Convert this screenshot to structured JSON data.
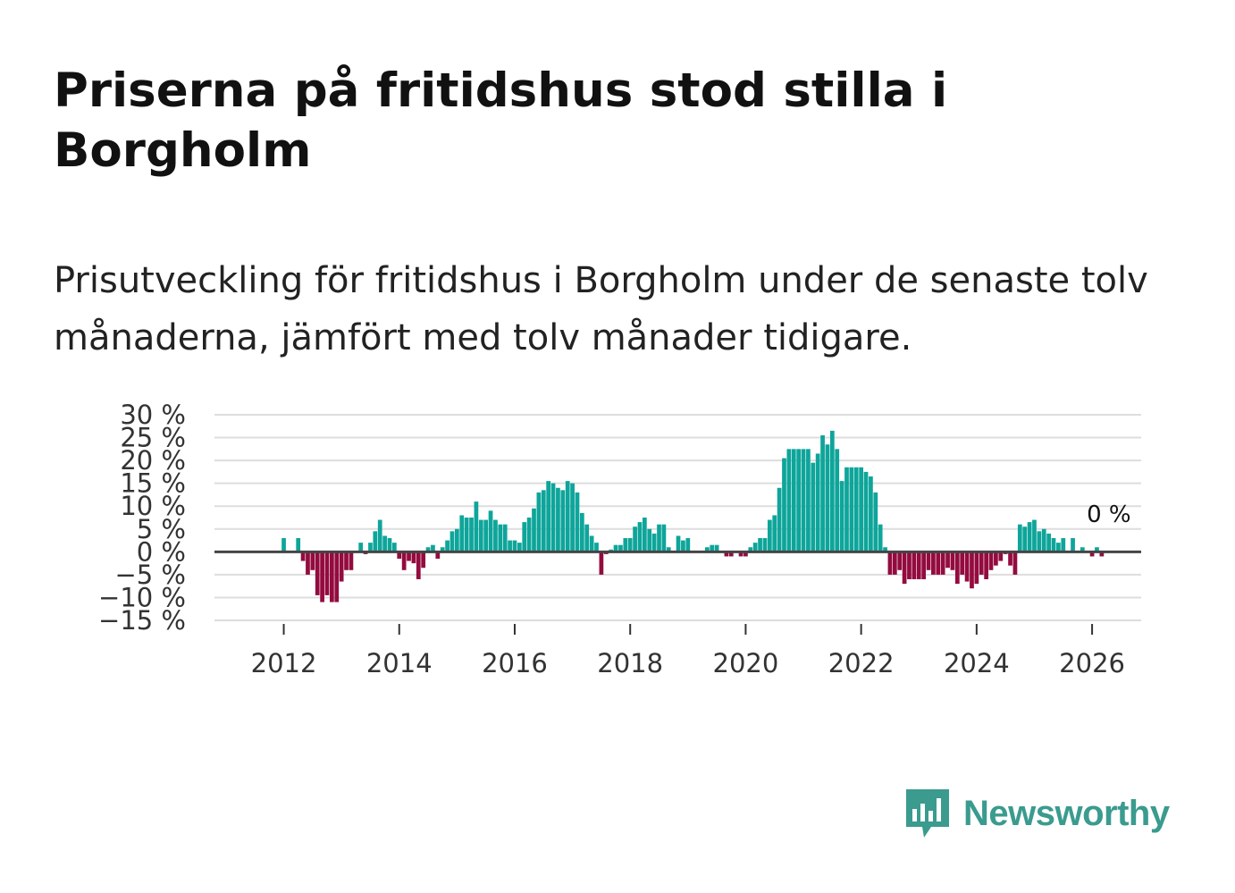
{
  "header": {
    "title": "Priserna på fritidshus stod stilla i Borgholm",
    "subtitle": "Prisutveckling för fritidshus i Borgholm under de senaste tolv månaderna, jämfört med tolv månader tidigare."
  },
  "brand": {
    "name": "Newsworthy",
    "icon": "newsworthy-logo-icon",
    "color": "#3a9b8e"
  },
  "colors": {
    "positive": "#0ea59a",
    "negative": "#930b3f",
    "zero_line": "#444444",
    "grid": "#dddddd"
  },
  "chart_data": {
    "type": "bar",
    "title": "Priserna på fritidshus stod stilla i Borgholm",
    "subtitle": "Prisutveckling för fritidshus i Borgholm under de senaste tolv månaderna, jämfört med tolv månader tidigare.",
    "xlabel": "",
    "ylabel": "",
    "unit": "%",
    "ylim": [
      -15,
      30
    ],
    "xlim": [
      2010.8,
      2026.85
    ],
    "grid": true,
    "y_ticks": [
      30,
      25,
      20,
      15,
      10,
      5,
      0,
      -5,
      -10,
      -15
    ],
    "y_tick_labels": [
      "30 %",
      "25 %",
      "20 %",
      "15 %",
      "10 %",
      "5 %",
      "0 %",
      "−5 %",
      "−10 %",
      "−15 %"
    ],
    "x_ticks": [
      2012,
      2014,
      2016,
      2018,
      2020,
      2022,
      2024,
      2026
    ],
    "x_tick_labels": [
      "2012",
      "2014",
      "2016",
      "2018",
      "2020",
      "2022",
      "2024",
      "2026"
    ],
    "start": "2011-10",
    "frequency": "monthly",
    "values": [
      0,
      0,
      0,
      3,
      0,
      0,
      3,
      -2,
      -5,
      -4,
      -9.5,
      -11,
      -9.5,
      -11,
      -11,
      -6.5,
      -4,
      -4,
      0,
      2,
      -0.5,
      2,
      4.5,
      7,
      3.5,
      3,
      2,
      -1.5,
      -4,
      -2,
      -2.5,
      -6,
      -3.5,
      1,
      1.5,
      -1.5,
      1,
      2.5,
      4.5,
      5,
      8,
      7.5,
      7.5,
      11,
      7,
      7,
      9,
      7,
      6,
      6,
      2.5,
      2.5,
      2,
      6.5,
      7.5,
      9.5,
      13,
      13.5,
      15.5,
      15,
      14,
      13.5,
      15.5,
      15,
      13,
      8.5,
      6,
      3.5,
      2,
      -5,
      -0.5,
      0.5,
      1.5,
      1.5,
      3,
      3,
      5.5,
      6.5,
      7.5,
      5,
      4,
      6,
      6,
      1,
      0,
      3.5,
      2.5,
      3,
      0,
      0,
      0,
      1,
      1.5,
      1.5,
      0,
      -1,
      -1,
      0,
      -1,
      -1,
      1,
      2,
      3,
      3,
      7,
      8,
      14,
      20.5,
      22.5,
      22.5,
      22.5,
      22.5,
      22.5,
      19.5,
      21.5,
      25.5,
      23.5,
      26.5,
      22.5,
      15.5,
      18.5,
      18.5,
      18.5,
      18.5,
      17.5,
      16.5,
      13,
      6,
      1,
      -5,
      -5,
      -4,
      -7,
      -6,
      -6,
      -6,
      -6,
      -4,
      -5,
      -5,
      -5,
      -3.5,
      -4,
      -7,
      -5,
      -6.5,
      -8,
      -7,
      -5,
      -6,
      -4,
      -3,
      -2,
      -0.5,
      -3,
      -5,
      6,
      5.5,
      6.5,
      7,
      4.5,
      5,
      4,
      3,
      2,
      3,
      0,
      3,
      0,
      1,
      0,
      -1,
      1,
      -1
    ],
    "annotations": [
      {
        "label": "0 %",
        "position": "end of series, above zero line"
      }
    ]
  }
}
